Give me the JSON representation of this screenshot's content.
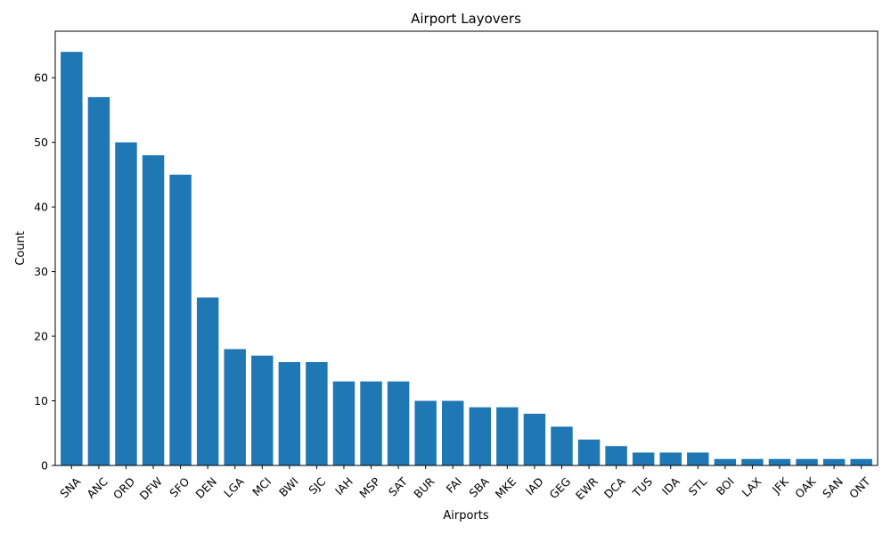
{
  "chart_data": {
    "type": "bar",
    "title": "Airport Layovers",
    "xlabel": "Airports",
    "ylabel": "Count",
    "categories": [
      "SNA",
      "ANC",
      "ORD",
      "DFW",
      "SFO",
      "DEN",
      "LGA",
      "MCI",
      "BWI",
      "SJC",
      "IAH",
      "MSP",
      "SAT",
      "BUR",
      "FAI",
      "SBA",
      "MKE",
      "IAD",
      "GEG",
      "EWR",
      "DCA",
      "TUS",
      "IDA",
      "STL",
      "BOI",
      "LAX",
      "JFK",
      "OAK",
      "SAN",
      "ONT"
    ],
    "values": [
      64,
      57,
      50,
      48,
      45,
      26,
      18,
      17,
      16,
      16,
      13,
      13,
      13,
      10,
      10,
      9,
      9,
      8,
      6,
      4,
      3,
      2,
      2,
      2,
      1,
      1,
      1,
      1,
      1,
      1
    ],
    "ylim": [
      0,
      67.2
    ],
    "yticks": [
      0,
      10,
      20,
      30,
      40,
      50,
      60
    ],
    "bar_color": "#1f77b4",
    "grid": false,
    "xtick_rotation": 45
  }
}
